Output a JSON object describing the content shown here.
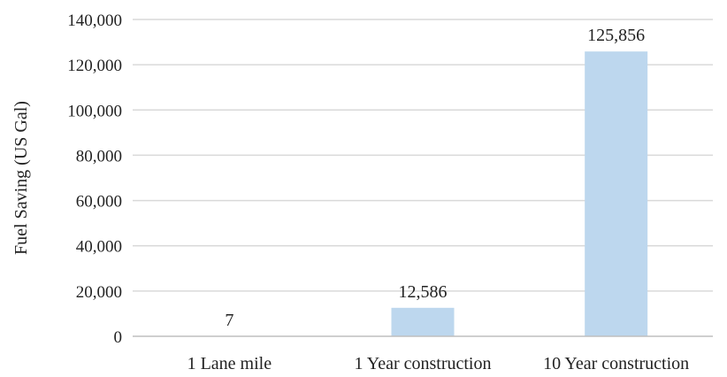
{
  "chart_data": {
    "type": "bar",
    "title": "",
    "xlabel": "",
    "ylabel": "Fuel Saving (US Gal)",
    "categories": [
      "1 Lane mile",
      "1 Year construction",
      "10 Year construction"
    ],
    "values": [
      7,
      12586,
      125856
    ],
    "value_labels": [
      "7",
      "12,586",
      "125,856"
    ],
    "ylim": [
      0,
      140000
    ],
    "yticks": [
      0,
      20000,
      40000,
      60000,
      80000,
      100000,
      120000,
      140000
    ],
    "ytick_labels": [
      "0",
      "20,000",
      "40,000",
      "60,000",
      "80,000",
      "100,000",
      "120,000",
      "140,000"
    ],
    "grid": true,
    "legend": "none",
    "colors": {
      "bar": "#bdd7ee",
      "grid": "#d9d9d9",
      "axis": "#bfbfbf",
      "text": "#222222"
    }
  }
}
